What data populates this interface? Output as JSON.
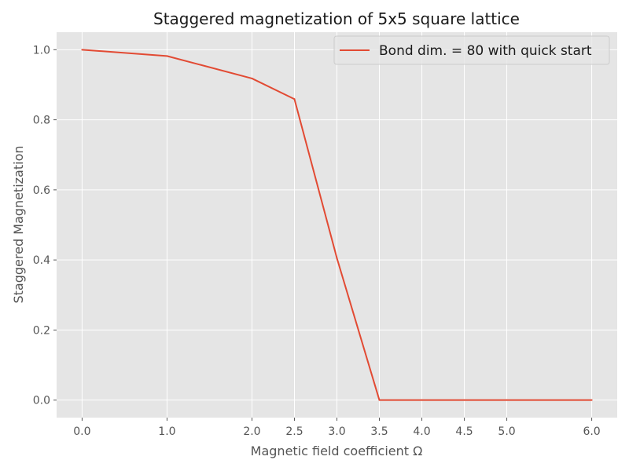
{
  "chart_data": {
    "type": "line",
    "title": "Staggered magnetization of 5x5 square lattice",
    "xlabel": "Magnetic field coefficient Ω",
    "ylabel": "Staggered Magnetization",
    "xlim": [
      -0.3,
      6.3
    ],
    "ylim": [
      -0.05,
      1.05
    ],
    "xticks": [
      0.0,
      1.0,
      2.0,
      2.5,
      3.0,
      3.5,
      4.0,
      4.5,
      5.0,
      6.0
    ],
    "xtick_labels": [
      "0.0",
      "1.0",
      "2.0",
      "2.5",
      "3.0",
      "3.5",
      "4.0",
      "4.5",
      "5.0",
      "6.0"
    ],
    "yticks": [
      0.0,
      0.2,
      0.4,
      0.6,
      0.8,
      1.0
    ],
    "ytick_labels": [
      "0.0",
      "0.2",
      "0.4",
      "0.6",
      "0.8",
      "1.0"
    ],
    "grid": true,
    "legend_position": "top-right",
    "series": [
      {
        "name": "Bond dim. = 80 with quick start",
        "color": "#e24a33",
        "x": [
          0.0,
          1.0,
          2.0,
          2.5,
          3.0,
          3.5,
          4.0,
          4.5,
          5.0,
          6.0
        ],
        "y": [
          1.0,
          0.982,
          0.918,
          0.859,
          0.405,
          0.0,
          0.0,
          0.0,
          0.0,
          0.0
        ]
      }
    ],
    "colors": {
      "plot_background": "#e5e5e5",
      "grid": "#ffffff",
      "text": "#555555"
    }
  }
}
